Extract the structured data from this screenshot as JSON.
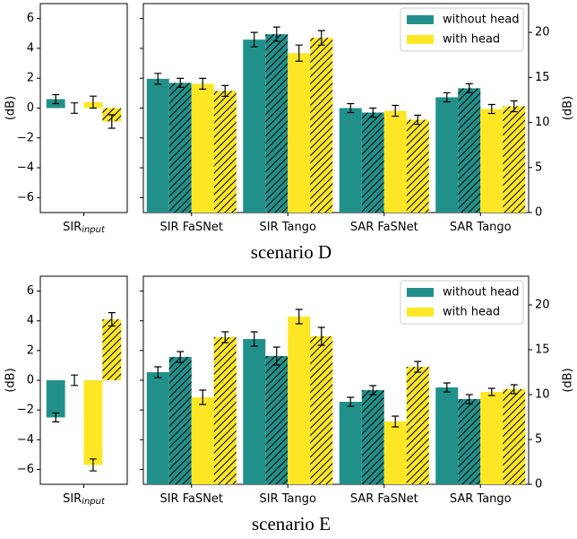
{
  "chart_data": [
    {
      "type": "bar",
      "categories": [
        "SIR"
      ],
      "subscripts": [
        "input"
      ],
      "ylabel": "(dB)",
      "ylim": [
        -7,
        7
      ],
      "yticks": [
        {
          "value": -6,
          "label": "−6"
        },
        {
          "value": -4,
          "label": "−4"
        },
        {
          "value": -2,
          "label": "−2"
        },
        0,
        2,
        4,
        6
      ],
      "series": [
        {
          "color": "#22908a",
          "values": [
            0.6
          ],
          "errors": [
            0.3
          ],
          "hatched_values": [
            0.0
          ],
          "hatched_errors": [
            0.35
          ]
        },
        {
          "color": "#fde725",
          "values": [
            0.4
          ],
          "errors": [
            0.4
          ],
          "hatched_values": [
            -0.9
          ],
          "hatched_errors": [
            0.45
          ]
        }
      ]
    },
    {
      "type": "bar",
      "categories": [
        "SIR FaSNet",
        "SIR Tango",
        "SAR FaSNet",
        "SAR Tango"
      ],
      "y2label": "(dB)",
      "y2lim": [
        0,
        23.2
      ],
      "y2ticks": [
        0,
        5,
        10,
        15,
        20
      ],
      "legend": "upper right",
      "caption": "scenario D",
      "series": [
        {
          "name": "without head",
          "color": "#22908a",
          "values": [
            14.85,
            19.2,
            11.6,
            12.8
          ],
          "errors": [
            0.6,
            0.8,
            0.5,
            0.5
          ],
          "hatched_values": [
            14.4,
            19.8,
            11.1,
            13.8
          ],
          "hatched_errors": [
            0.5,
            0.8,
            0.5,
            0.5
          ]
        },
        {
          "name": "with head",
          "color": "#fde725",
          "values": [
            14.3,
            17.7,
            11.3,
            11.5
          ],
          "errors": [
            0.6,
            0.9,
            0.6,
            0.5
          ],
          "hatched_values": [
            13.5,
            19.4,
            10.3,
            11.8
          ],
          "hatched_errors": [
            0.6,
            0.8,
            0.5,
            0.6
          ]
        }
      ]
    },
    {
      "type": "bar",
      "categories": [
        "SIR"
      ],
      "subscripts": [
        "input"
      ],
      "ylabel": "(dB)",
      "ylim": [
        -7,
        7
      ],
      "yticks": [
        {
          "value": -6,
          "label": "−6"
        },
        {
          "value": -4,
          "label": "−4"
        },
        {
          "value": -2,
          "label": "−2"
        },
        0,
        2,
        4,
        6
      ],
      "series": [
        {
          "color": "#22908a",
          "values": [
            -2.5
          ],
          "errors": [
            0.3
          ],
          "hatched_values": [
            0.0
          ],
          "hatched_errors": [
            0.35
          ]
        },
        {
          "color": "#fde725",
          "values": [
            -5.7
          ],
          "errors": [
            0.4
          ],
          "hatched_values": [
            4.1
          ],
          "hatched_errors": [
            0.45
          ]
        }
      ]
    },
    {
      "type": "bar",
      "categories": [
        "SIR FaSNet",
        "SIR Tango",
        "SAR FaSNet",
        "SAR Tango"
      ],
      "y2label": "(dB)",
      "y2lim": [
        0,
        23.2
      ],
      "y2ticks": [
        0,
        5,
        10,
        15,
        20
      ],
      "legend": "upper right",
      "caption": "scenario E",
      "series": [
        {
          "name": "without head",
          "color": "#22908a",
          "values": [
            12.5,
            16.2,
            9.2,
            10.8
          ],
          "errors": [
            0.6,
            0.8,
            0.5,
            0.5
          ],
          "hatched_values": [
            14.2,
            14.3,
            10.5,
            9.5
          ],
          "hatched_errors": [
            0.6,
            1.0,
            0.5,
            0.5
          ]
        },
        {
          "name": "with head",
          "color": "#fde725",
          "values": [
            9.7,
            18.7,
            7.0,
            10.3
          ],
          "errors": [
            0.8,
            0.8,
            0.6,
            0.4
          ],
          "hatched_values": [
            16.4,
            16.5,
            13.1,
            10.6
          ],
          "hatched_errors": [
            0.6,
            1.0,
            0.6,
            0.5
          ]
        }
      ]
    }
  ]
}
